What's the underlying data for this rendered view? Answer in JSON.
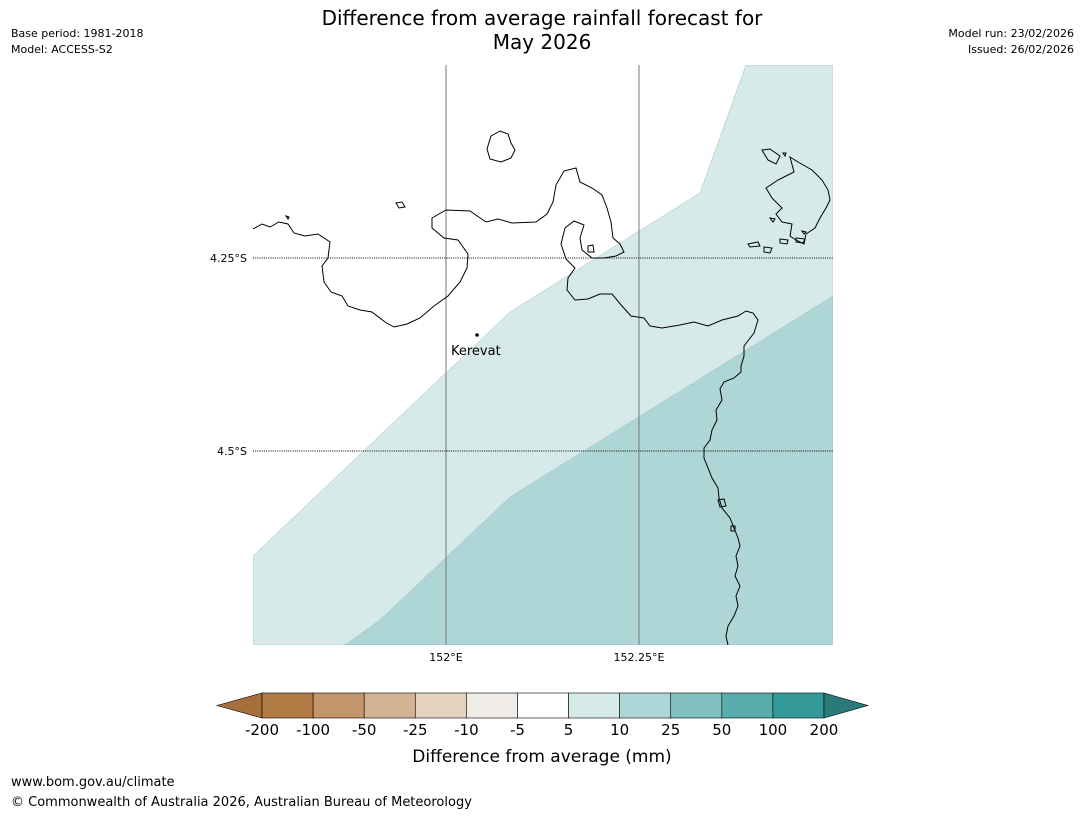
{
  "header": {
    "title_line1": "Difference from average rainfall forecast for",
    "title_line2": "May 2026",
    "base_period": "Base period: 1981-2018",
    "model": "Model: ACCESS-S2",
    "model_run": "Model run: 23/02/2026",
    "issued": "Issued: 26/02/2026"
  },
  "map": {
    "lat_labels": [
      "4.25°S",
      "4.5°S"
    ],
    "lon_labels": [
      "152°E",
      "152.25°E"
    ],
    "places": [
      {
        "name": "Kerevat"
      }
    ],
    "colors": {
      "band_5_10": "#d6eaea",
      "band_10_25": "#aed6d6",
      "coastline": "#000000",
      "meridian": "#777777"
    }
  },
  "colorbar": {
    "title": "Difference from average (mm)",
    "ticks": [
      "-200",
      "-100",
      "-50",
      "-25",
      "-10",
      "-5",
      "5",
      "10",
      "25",
      "50",
      "100",
      "200"
    ],
    "colors": [
      "#a6703a",
      "#b07a45",
      "#c4956b",
      "#d4b394",
      "#e5d3c2",
      "#efebe7",
      "#ffffff",
      "#d6eaea",
      "#aed6d6",
      "#80c1bf",
      "#5aadad",
      "#339999",
      "#2a7a7a"
    ]
  },
  "footer": {
    "site": "www.bom.gov.au/climate",
    "copyright": "© Commonwealth of Australia 2026, Australian Bureau of Meteorology"
  }
}
